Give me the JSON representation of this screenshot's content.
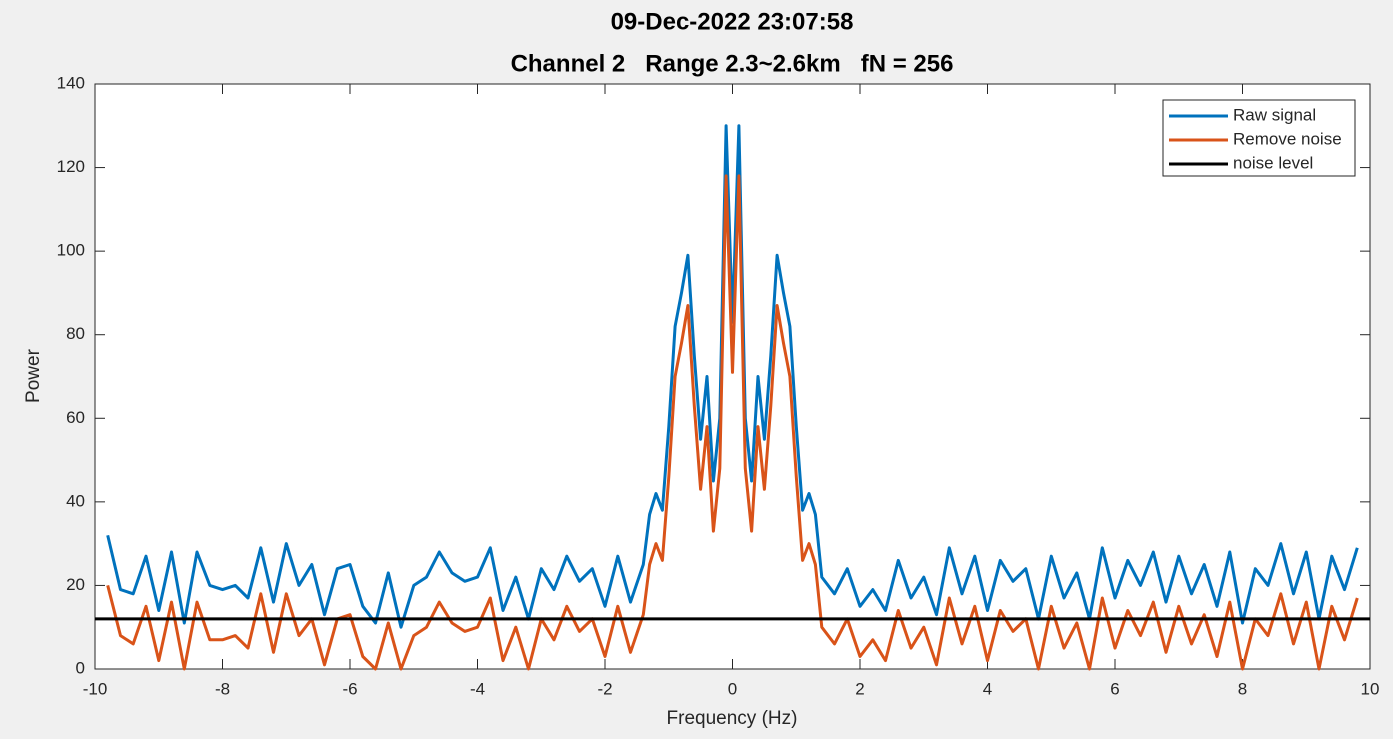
{
  "chart_data": {
    "type": "line",
    "title": "09-Dec-2022 23:07:58",
    "subtitle": "Channel 2   Range 2.3~2.6km   fN = 256",
    "x_label": "Frequency (Hz)",
    "y_label": "Power",
    "x": [
      -9.8,
      -9.6,
      -9.4,
      -9.2,
      -9.0,
      -8.8,
      -8.6,
      -8.4,
      -8.2,
      -8.0,
      -7.8,
      -7.6,
      -7.4,
      -7.2,
      -7.0,
      -6.8,
      -6.6,
      -6.4,
      -6.2,
      -6.0,
      -5.8,
      -5.6,
      -5.4,
      -5.2,
      -5.0,
      -4.8,
      -4.6,
      -4.4,
      -4.2,
      -4.0,
      -3.8,
      -3.6,
      -3.4,
      -3.2,
      -3.0,
      -2.8,
      -2.6,
      -2.4,
      -2.2,
      -2.0,
      -1.8,
      -1.6,
      -1.4,
      -1.3,
      -1.2,
      -1.1,
      -1.0,
      -0.9,
      -0.8,
      -0.7,
      -0.6,
      -0.5,
      -0.4,
      -0.3,
      -0.2,
      -0.1,
      0,
      0.1,
      0.2,
      0.3,
      0.4,
      0.5,
      0.6,
      0.7,
      0.8,
      0.9,
      1.0,
      1.1,
      1.2,
      1.3,
      1.4,
      1.6,
      1.8,
      2.0,
      2.2,
      2.4,
      2.6,
      2.8,
      3.0,
      3.2,
      3.4,
      3.6,
      3.8,
      4.0,
      4.2,
      4.4,
      4.6,
      4.8,
      5.0,
      5.2,
      5.4,
      5.6,
      5.8,
      6.0,
      6.2,
      6.4,
      6.6,
      6.8,
      7.0,
      7.2,
      7.4,
      7.6,
      7.8,
      8.0,
      8.2,
      8.4,
      8.6,
      8.8,
      9.0,
      9.2,
      9.4,
      9.6,
      9.8
    ],
    "series": [
      {
        "name": "Raw signal",
        "color": "#0072bd",
        "values": [
          32,
          19,
          18,
          27,
          14,
          28,
          11,
          28,
          20,
          19,
          20,
          17,
          29,
          16,
          30,
          20,
          25,
          13,
          24,
          25,
          15,
          11,
          23,
          10,
          20,
          22,
          28,
          23,
          21,
          22,
          29,
          14,
          22,
          12,
          24,
          19,
          27,
          21,
          24,
          15,
          27,
          16,
          25,
          37,
          42,
          38,
          58,
          82,
          90,
          99,
          75,
          55,
          70,
          45,
          60,
          130,
          83,
          130,
          60,
          45,
          70,
          55,
          75,
          99,
          90,
          82,
          58,
          38,
          42,
          37,
          22,
          18,
          24,
          15,
          19,
          14,
          26,
          17,
          22,
          13,
          29,
          18,
          27,
          14,
          26,
          21,
          24,
          12,
          27,
          17,
          23,
          12,
          29,
          17,
          26,
          20,
          28,
          16,
          27,
          18,
          25,
          15,
          28,
          11,
          24,
          20,
          30,
          18,
          28,
          12,
          27,
          19,
          29
        ]
      },
      {
        "name": "Remove noise",
        "color": "#d95319",
        "values": [
          20,
          8,
          6,
          15,
          2,
          16,
          0,
          16,
          7,
          7,
          8,
          5,
          18,
          4,
          18,
          8,
          12,
          1,
          12,
          13,
          3,
          0,
          11,
          0,
          8,
          10,
          16,
          11,
          9,
          10,
          17,
          2,
          10,
          0,
          12,
          7,
          15,
          9,
          12,
          3,
          15,
          4,
          13,
          25,
          30,
          26,
          46,
          70,
          78,
          87,
          63,
          43,
          58,
          33,
          48,
          118,
          71,
          118,
          48,
          33,
          58,
          43,
          63,
          87,
          78,
          70,
          46,
          26,
          30,
          25,
          10,
          6,
          12,
          3,
          7,
          2,
          14,
          5,
          10,
          1,
          17,
          6,
          15,
          2,
          14,
          9,
          12,
          0,
          15,
          5,
          11,
          0,
          17,
          5,
          14,
          8,
          16,
          4,
          15,
          6,
          13,
          3,
          16,
          0,
          12,
          8,
          18,
          6,
          16,
          0,
          15,
          7,
          17
        ]
      },
      {
        "name": "noise level",
        "color": "#000000",
        "x": [
          -10,
          10
        ],
        "values": [
          12,
          12
        ]
      }
    ],
    "xlim": [
      -10,
      10
    ],
    "xticks": [
      -10,
      -8,
      -6,
      -4,
      -2,
      0,
      2,
      4,
      6,
      8,
      10
    ],
    "ylim": [
      0,
      140
    ],
    "yticks": [
      0,
      20,
      40,
      60,
      80,
      100,
      120,
      140
    ],
    "legend": "top-right",
    "grid": false
  }
}
